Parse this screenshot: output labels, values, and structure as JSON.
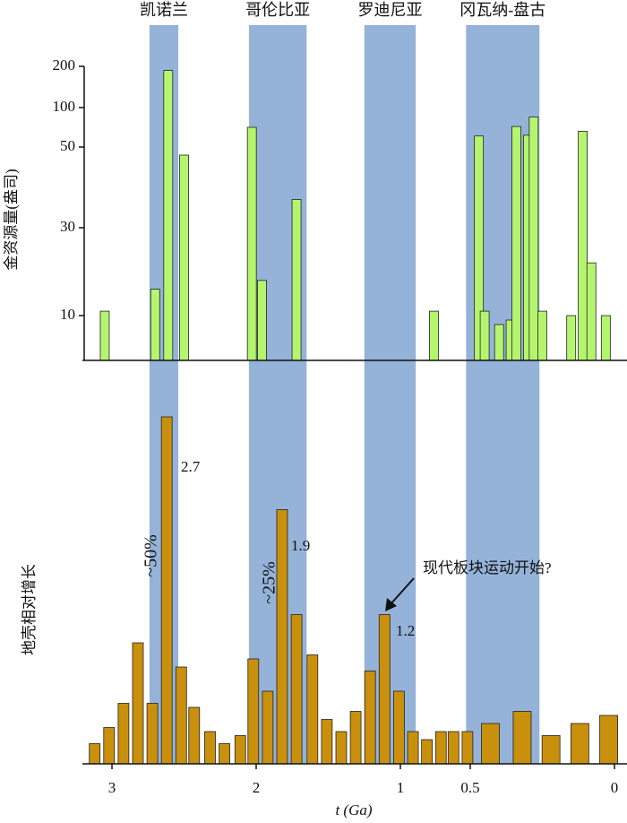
{
  "chart_data": [
    {
      "type": "bar",
      "ylabel": "金资源量(盎司)",
      "ylim": [
        0,
        200
      ],
      "yticks": [
        10,
        30,
        50,
        100,
        200
      ],
      "bands": [
        {
          "name": "凯诺兰",
          "start": 2.74,
          "end": 2.54
        },
        {
          "name": "哥伦比亚",
          "start": 2.05,
          "end": 1.65
        },
        {
          "name": "罗迪尼亚",
          "start": 1.25,
          "end": 0.89
        },
        {
          "name": "冈瓦纳-盘古",
          "start": 0.53,
          "end": 0.26
        }
      ],
      "band_color": "#95b3d9",
      "series": [
        {
          "color": "#b5f56e",
          "x": [
            3.05,
            2.7,
            2.61,
            2.5,
            2.03,
            1.96,
            1.72,
            0.76,
            0.47,
            0.45,
            0.4,
            0.36,
            0.34,
            0.3,
            0.28,
            0.25,
            0.15,
            0.11,
            0.08,
            0.03
          ],
          "values": [
            11,
            16,
            190,
            48,
            75,
            18,
            37,
            11,
            64,
            11,
            8,
            9,
            76,
            65,
            88,
            11,
            10,
            70,
            22,
            10
          ]
        }
      ]
    },
    {
      "type": "bar",
      "ylabel": "地壳相对增长",
      "xlabel": "t (Ga)",
      "xlim": [
        3.2,
        0
      ],
      "xticks": [
        3,
        2,
        1,
        0.5,
        0
      ],
      "ylim": [
        0,
        100
      ],
      "annotations": [
        "2.7",
        "1.9",
        "1.2",
        "~50%",
        "~25%",
        "现代板块运动开始?"
      ],
      "series": [
        {
          "color": "#c8900c",
          "x": [
            3.12,
            3.02,
            2.92,
            2.82,
            2.72,
            2.62,
            2.52,
            2.43,
            2.32,
            2.22,
            2.11,
            2.02,
            1.92,
            1.82,
            1.72,
            1.61,
            1.51,
            1.41,
            1.31,
            1.21,
            1.11,
            1.01,
            0.91,
            0.81,
            0.71,
            0.62,
            0.52,
            0.43,
            0.32,
            0.22,
            0.12,
            0.02
          ],
          "values": [
            5,
            9,
            15,
            30,
            15,
            86,
            24,
            14,
            8,
            5,
            7,
            26,
            18,
            63,
            37,
            27,
            11,
            8,
            13,
            23,
            37,
            18,
            8,
            6,
            8,
            8,
            8,
            10,
            13,
            7,
            10,
            12
          ]
        }
      ]
    }
  ]
}
